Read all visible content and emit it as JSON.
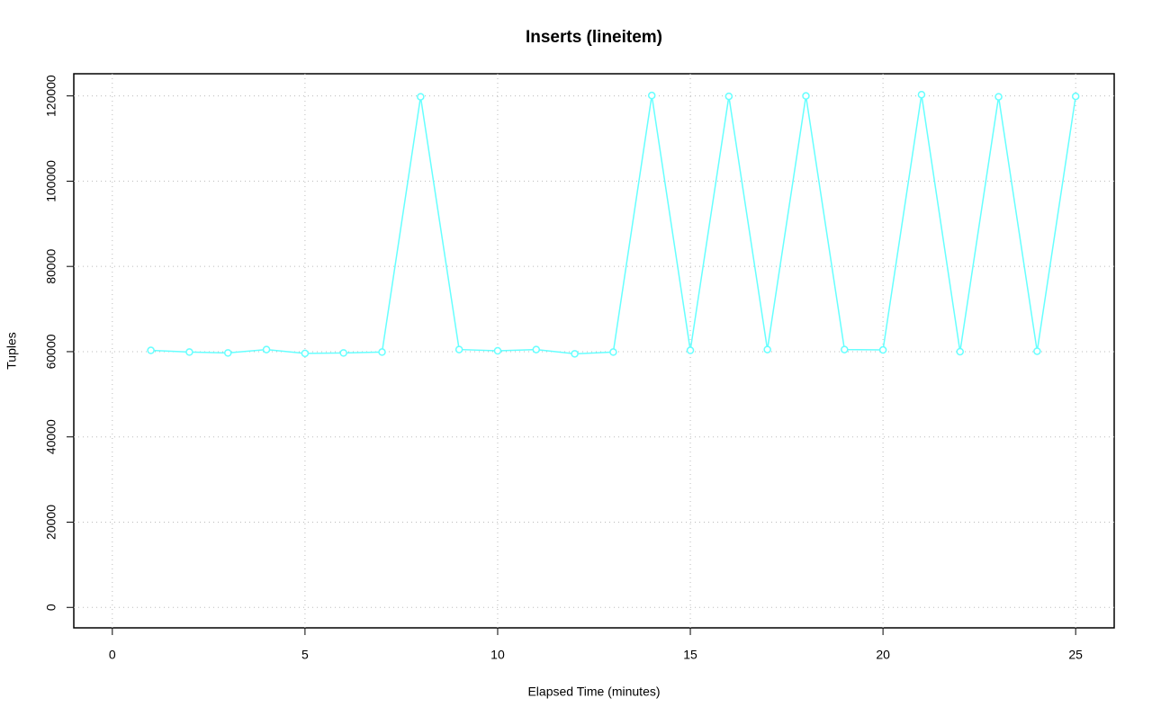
{
  "chart_data": {
    "type": "line",
    "title": "Inserts (lineitem)",
    "x_label": "Elapsed Time (minutes)",
    "y_label": "Tuples",
    "x": [
      1,
      2,
      3,
      4,
      5,
      6,
      7,
      8,
      9,
      10,
      11,
      12,
      13,
      14,
      15,
      16,
      17,
      18,
      19,
      20,
      21,
      22,
      23,
      24,
      25
    ],
    "series": [
      {
        "name": "lineitem",
        "color": "#66ffff",
        "values": [
          60300,
          59900,
          59700,
          60500,
          59600,
          59700,
          59900,
          119800,
          60500,
          60200,
          60500,
          59500,
          59900,
          120100,
          60300,
          119900,
          60500,
          120000,
          60500,
          60400,
          120300,
          60000,
          119800,
          60100,
          119900
        ]
      }
    ],
    "xlim": [
      -1,
      26
    ],
    "xticks": [
      0,
      5,
      10,
      15,
      20,
      25
    ],
    "ylim": [
      -4800,
      125200
    ],
    "yticks": [
      0,
      20000,
      40000,
      60000,
      80000,
      100000,
      120000
    ],
    "grid": true
  }
}
